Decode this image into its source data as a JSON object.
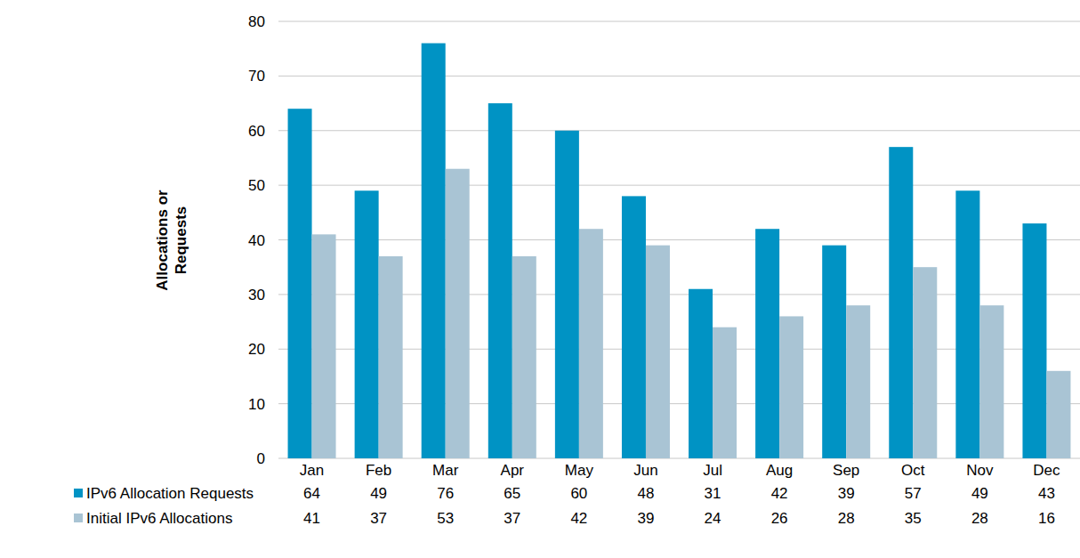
{
  "chart_data": {
    "type": "bar",
    "y_label": "Allocations or Requests",
    "categories": [
      "Jan",
      "Feb",
      "Mar",
      "Apr",
      "May",
      "Jun",
      "Jul",
      "Aug",
      "Sep",
      "Oct",
      "Nov",
      "Dec"
    ],
    "series": [
      {
        "name": "IPv6 Allocation Requests",
        "color": "#0093c4",
        "values": [
          64,
          49,
          76,
          65,
          60,
          48,
          31,
          42,
          39,
          57,
          49,
          43
        ]
      },
      {
        "name": "Initial IPv6 Allocations",
        "color": "#a9c4d4",
        "values": [
          41,
          37,
          53,
          37,
          42,
          39,
          24,
          26,
          28,
          35,
          28,
          16
        ]
      }
    ],
    "ylim": [
      0,
      80
    ],
    "yticks": [
      0,
      10,
      20,
      30,
      40,
      50,
      60,
      70,
      80
    ],
    "grid": true,
    "legend": "bottom"
  }
}
